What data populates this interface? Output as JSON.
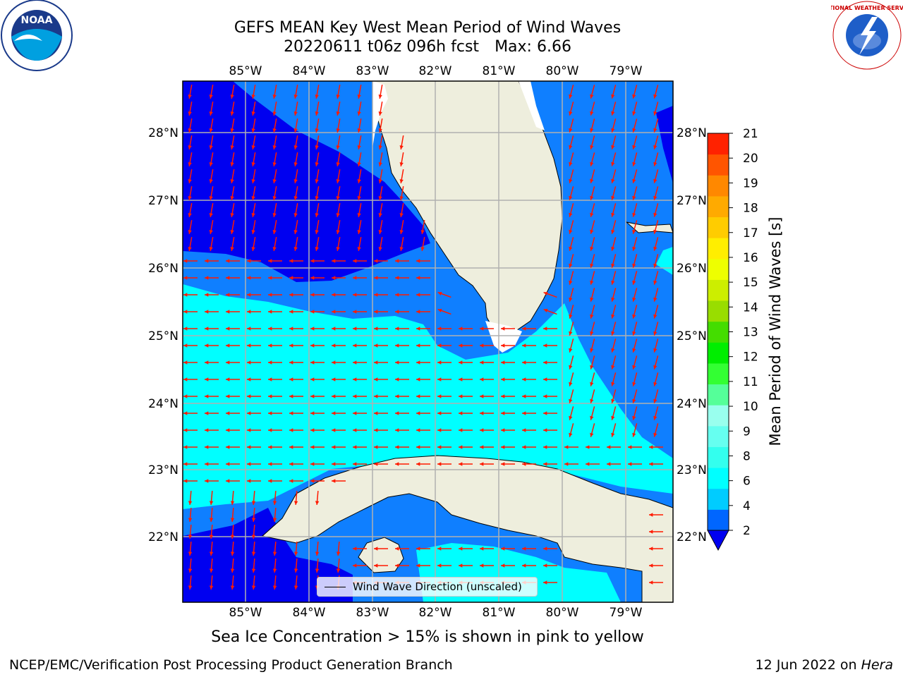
{
  "title": {
    "line1": "GEFS MEAN Key West Mean Period of Wind Waves",
    "line2_a": "20220611 t06z 096h fcst",
    "line2_b": "Max: 6.66"
  },
  "logos": {
    "left": "NOAA",
    "right": "NATIONAL WEATHER SERVICE"
  },
  "map": {
    "lon_labels": [
      "85°W",
      "84°W",
      "83°W",
      "82°W",
      "81°W",
      "80°W",
      "79°W"
    ],
    "lon_values": [
      -85,
      -84,
      -83,
      -82,
      -81,
      -80,
      -79
    ],
    "lat_labels": [
      "28°N",
      "27°N",
      "26°N",
      "25°N",
      "24°N",
      "23°N",
      "22°N"
    ],
    "lat_values": [
      28,
      27,
      26,
      25,
      24,
      23,
      22
    ],
    "extent": {
      "lon_min": -86.0,
      "lon_max": -78.3,
      "lat_min": 21.0,
      "lat_max": 28.8
    },
    "colors": {
      "land": "#eeeedd",
      "band_2_4": "#0f7fff",
      "band_4_6": "#00ffff",
      "deep": "#0000f0",
      "arrow": "#ff1a00",
      "grid": "#b0b0b0",
      "coast": "#000000"
    }
  },
  "legend": {
    "label": "Wind Wave Direction (unscaled)"
  },
  "colorbar": {
    "label": "Mean Period of Wind Waves [s]",
    "ticks": [
      "2",
      "4",
      "6",
      "8",
      "9",
      "10",
      "11",
      "12",
      "13",
      "14",
      "15",
      "16",
      "17",
      "18",
      "19",
      "20",
      "21"
    ],
    "levels": [
      2,
      3,
      4,
      5,
      6,
      7,
      8,
      9,
      10,
      11,
      12,
      13,
      14,
      15,
      16,
      17,
      18,
      19,
      20,
      21
    ],
    "level_colors": [
      "#0066ff",
      "#0066ff",
      "#00ccff",
      "#00ffff",
      "#33ffee",
      "#66fff0",
      "#99ffee",
      "#55ff99",
      "#33ff33",
      "#00ee00",
      "#44dd00",
      "#99dd00",
      "#ccee00",
      "#eeff00",
      "#ffee00",
      "#ffcc00",
      "#ffaa00",
      "#ff8800",
      "#ff5500",
      "#ff2200",
      "#ff0000"
    ]
  },
  "ice_note": "Sea Ice Concentration > 15% is shown in pink to yellow",
  "footer": {
    "left": "NCEP/EMC/Verification Post Processing Product Generation Branch",
    "right_date": "12 Jun 2022 on ",
    "right_host": "Hera"
  }
}
